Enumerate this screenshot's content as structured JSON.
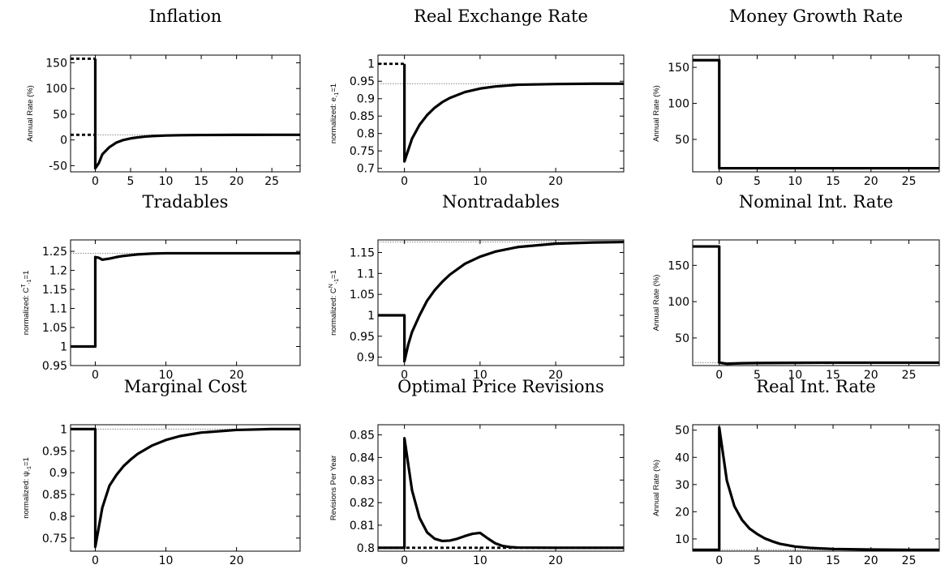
{
  "chart_data": [
    {
      "type": "line",
      "title": "Inflation",
      "ylabel": "Annual Rate (%)",
      "xlim": [
        -3.5,
        29
      ],
      "ylim": [
        -62,
        165
      ],
      "xticks": [
        0,
        5,
        10,
        15,
        20,
        25
      ],
      "yticks": [
        -50,
        0,
        50,
        100,
        150
      ],
      "ref_line": {
        "y": 10,
        "x_from": 0
      },
      "series": [
        {
          "style": "solid",
          "x": [
            0,
            0,
            0.5,
            1,
            2,
            3,
            4,
            5,
            6,
            7,
            8,
            10,
            12,
            15,
            20,
            25,
            29
          ],
          "y": [
            158,
            -55,
            -45,
            -28,
            -14,
            -5,
            0,
            3,
            5,
            6.5,
            7.5,
            8.6,
            9.2,
            9.6,
            9.9,
            10,
            10
          ]
        },
        {
          "style": "dashed",
          "x": [
            -3.5,
            0
          ],
          "y": [
            158,
            158
          ]
        },
        {
          "style": "dashed",
          "x": [
            -3.5,
            0
          ],
          "y": [
            10,
            10
          ]
        }
      ]
    },
    {
      "type": "line",
      "title": "Real Exchange Rate",
      "ylabel": "normalized: e",
      "ylabel_sub": "-1",
      "ylabel_tail": "=1",
      "xlim": [
        -3.5,
        29
      ],
      "ylim": [
        0.69,
        1.025
      ],
      "xticks": [
        0,
        10,
        20
      ],
      "yticks": [
        0.7,
        0.75,
        0.8,
        0.85,
        0.9,
        0.95,
        1
      ],
      "ref_line": {
        "y": 0.943,
        "x_from": -3.5
      },
      "series": [
        {
          "style": "solid",
          "x": [
            0,
            0,
            1,
            2,
            3,
            4,
            5,
            6,
            8,
            10,
            12,
            15,
            20,
            25,
            29
          ],
          "y": [
            1,
            0.72,
            0.785,
            0.825,
            0.853,
            0.874,
            0.89,
            0.902,
            0.919,
            0.929,
            0.935,
            0.94,
            0.942,
            0.943,
            0.943
          ]
        },
        {
          "style": "dashed",
          "x": [
            -3.5,
            0
          ],
          "y": [
            1,
            1
          ]
        }
      ]
    },
    {
      "type": "line",
      "title": "Money Growth Rate",
      "ylabel": "Annual Rate (%)",
      "xlim": [
        -3.5,
        29
      ],
      "ylim": [
        5,
        167
      ],
      "xticks": [
        0,
        5,
        10,
        15,
        20,
        25
      ],
      "yticks": [
        50,
        100,
        150
      ],
      "ref_line": null,
      "series": [
        {
          "style": "solid",
          "x": [
            -3.5,
            0,
            0,
            29
          ],
          "y": [
            160,
            160,
            10,
            10
          ]
        }
      ]
    },
    {
      "type": "line",
      "title": "Tradables",
      "ylabel": "normalized: C",
      "ylabel_sup": "T",
      "ylabel_sub": "-1",
      "ylabel_tail": "=1",
      "xlim": [
        -3.5,
        29
      ],
      "ylim": [
        0.95,
        1.28
      ],
      "xticks": [
        0,
        10,
        20
      ],
      "yticks": [
        0.95,
        1,
        1.05,
        1.1,
        1.15,
        1.2,
        1.25
      ],
      "ref_line": {
        "y": 1.245,
        "x_from": -3.5
      },
      "series": [
        {
          "style": "solid",
          "x": [
            -3.5,
            0,
            0,
            0.5,
            1,
            2,
            3,
            4,
            5,
            6,
            8,
            10,
            15,
            20,
            29
          ],
          "y": [
            1,
            1,
            1.235,
            1.233,
            1.228,
            1.231,
            1.235,
            1.238,
            1.24,
            1.242,
            1.244,
            1.245,
            1.245,
            1.245,
            1.245
          ]
        }
      ]
    },
    {
      "type": "line",
      "title": "Nontradables",
      "ylabel": "normalized: C",
      "ylabel_sup": "N",
      "ylabel_sub": "-1",
      "ylabel_tail": "=1",
      "xlim": [
        -3.5,
        29
      ],
      "ylim": [
        0.88,
        1.18
      ],
      "xticks": [
        0,
        10,
        20
      ],
      "yticks": [
        0.9,
        0.95,
        1,
        1.05,
        1.1,
        1.15
      ],
      "ref_line": {
        "y": 1.175,
        "x_from": -3.5
      },
      "series": [
        {
          "style": "solid",
          "x": [
            -3.5,
            0,
            0,
            0.5,
            1,
            2,
            3,
            4,
            5,
            6,
            8,
            10,
            12,
            15,
            20,
            25,
            29
          ],
          "y": [
            1,
            1,
            0.89,
            0.93,
            0.96,
            1.0,
            1.035,
            1.06,
            1.08,
            1.097,
            1.123,
            1.14,
            1.152,
            1.163,
            1.171,
            1.174,
            1.175
          ]
        }
      ]
    },
    {
      "type": "line",
      "title": "Nominal Int. Rate",
      "ylabel": "Annual Rate (%)",
      "xlim": [
        -3.5,
        29
      ],
      "ylim": [
        12,
        185
      ],
      "xticks": [
        0,
        5,
        10,
        15,
        20,
        25
      ],
      "yticks": [
        50,
        100,
        150
      ],
      "ref_line": {
        "y": 16,
        "x_from": -3.5
      },
      "series": [
        {
          "style": "solid",
          "x": [
            -3.5,
            0,
            0,
            1,
            3,
            5,
            10,
            15,
            20,
            29
          ],
          "y": [
            176,
            176,
            16,
            14.5,
            15.2,
            15.5,
            15.8,
            16,
            16,
            16
          ]
        }
      ]
    },
    {
      "type": "line",
      "title": "Marginal Cost",
      "ylabel": "normalized: ψ",
      "ylabel_sub": "-1",
      "ylabel_tail": "=1",
      "xlim": [
        -3.5,
        29
      ],
      "ylim": [
        0.72,
        1.01
      ],
      "xticks": [
        0,
        10,
        20
      ],
      "yticks": [
        0.75,
        0.8,
        0.85,
        0.9,
        0.95,
        1
      ],
      "ref_line": {
        "y": 1,
        "x_from": 0
      },
      "series": [
        {
          "style": "solid",
          "x": [
            -3.5,
            0,
            0,
            1,
            2,
            3,
            4,
            5,
            6,
            8,
            10,
            12,
            15,
            20,
            25,
            29
          ],
          "y": [
            1,
            1,
            0.73,
            0.82,
            0.87,
            0.895,
            0.915,
            0.93,
            0.943,
            0.962,
            0.975,
            0.984,
            0.992,
            0.998,
            1,
            1
          ]
        }
      ]
    },
    {
      "type": "line",
      "title": "Optimal Price Revisions",
      "ylabel": "Revisions Per Year",
      "xlim": [
        -3.5,
        29
      ],
      "ylim": [
        0.7985,
        0.8545
      ],
      "xticks": [
        0,
        10,
        20
      ],
      "yticks": [
        0.8,
        0.81,
        0.82,
        0.83,
        0.84,
        0.85
      ],
      "ref_line": null,
      "series": [
        {
          "style": "solid",
          "x": [
            -3.5,
            0,
            0,
            1,
            2,
            3,
            4,
            5,
            6,
            7,
            8,
            9,
            10,
            11,
            12,
            13,
            14,
            15,
            20,
            29
          ],
          "y": [
            0.8,
            0.8,
            0.8485,
            0.8255,
            0.8132,
            0.8068,
            0.804,
            0.803,
            0.8032,
            0.804,
            0.8052,
            0.8062,
            0.8066,
            0.8042,
            0.802,
            0.8008,
            0.8003,
            0.8001,
            0.8,
            0.8
          ]
        },
        {
          "style": "dashed",
          "x": [
            -3.5,
            29
          ],
          "y": [
            0.8,
            0.8
          ]
        }
      ]
    },
    {
      "type": "line",
      "title": "Real Int. Rate",
      "ylabel": "Annual Rate (%)",
      "xlim": [
        -3.5,
        29
      ],
      "ylim": [
        5.5,
        52
      ],
      "xticks": [
        0,
        5,
        10,
        15,
        20,
        25
      ],
      "yticks": [
        10,
        20,
        30,
        40,
        50
      ],
      "ref_line": {
        "y": 6,
        "x_from": -3.5
      },
      "series": [
        {
          "style": "solid",
          "x": [
            -3.5,
            0,
            0,
            1,
            2,
            3,
            4,
            5,
            6,
            7,
            8,
            10,
            12,
            15,
            20,
            25,
            29
          ],
          "y": [
            6,
            6,
            51,
            31.5,
            22,
            17,
            13.8,
            11.8,
            10.2,
            9.1,
            8.2,
            7.2,
            6.7,
            6.3,
            6.1,
            6,
            6
          ]
        }
      ]
    }
  ]
}
